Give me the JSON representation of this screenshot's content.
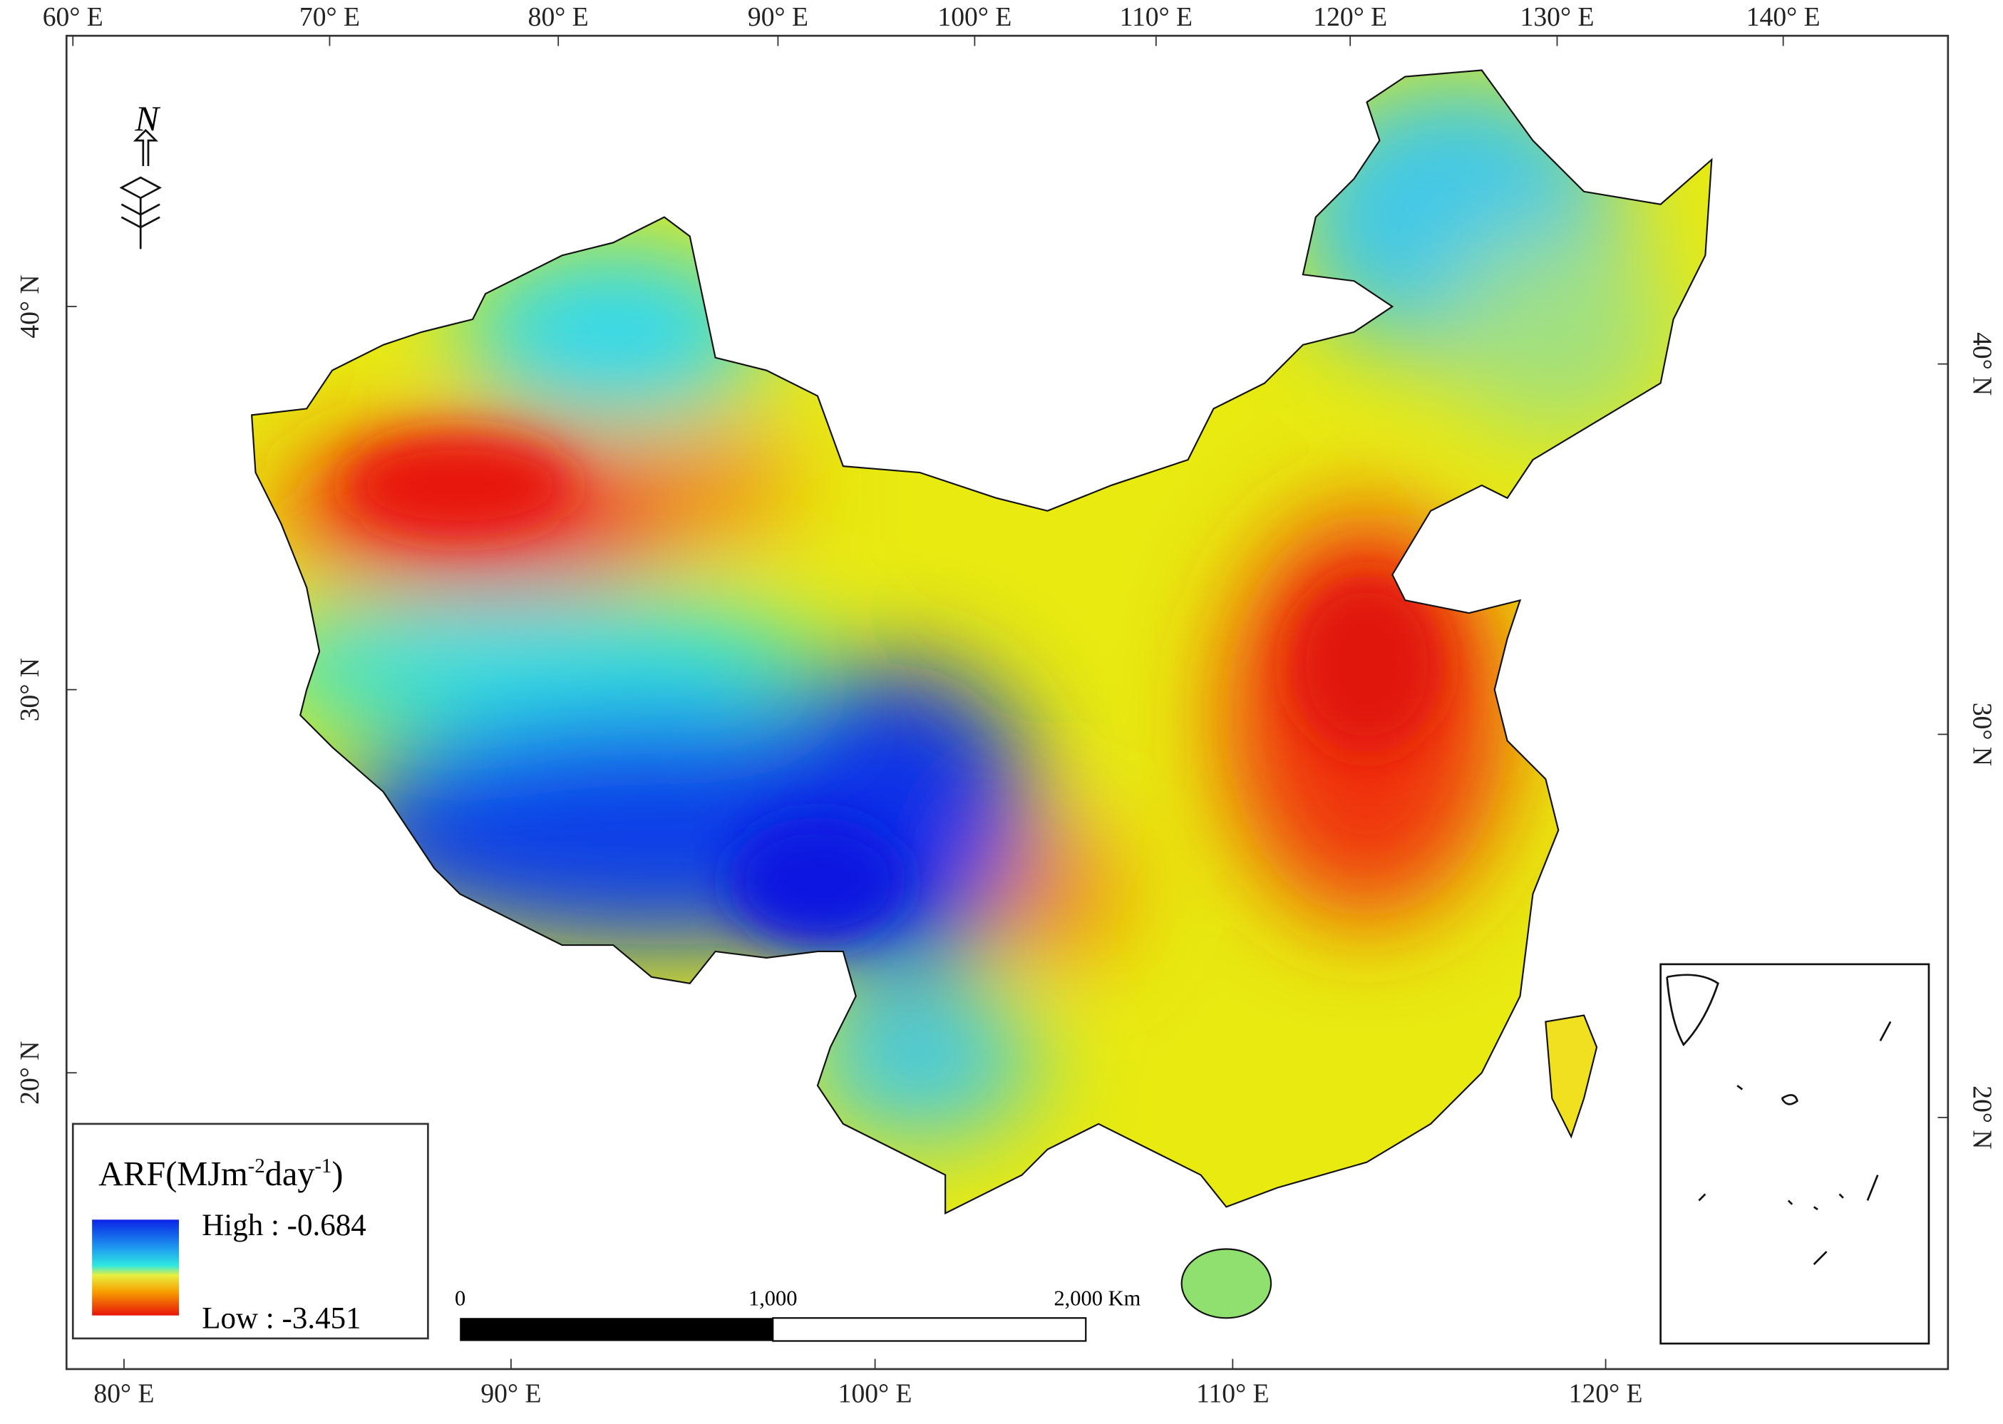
{
  "top_axis": {
    "labels": [
      "60° E",
      "70° E",
      "80° E",
      "90° E",
      "100° E",
      "110° E",
      "120° E",
      "130° E",
      "140° E"
    ]
  },
  "bottom_axis": {
    "labels": [
      "80° E",
      "90° E",
      "100° E",
      "110° E",
      "120° E"
    ]
  },
  "left_axis": {
    "labels": [
      "40° N",
      "30° N",
      "20° N"
    ]
  },
  "right_axis": {
    "labels": [
      "40° N",
      "30° N",
      "20° N"
    ]
  },
  "north_arrow": {
    "label": "N"
  },
  "legend": {
    "title_parts": [
      "ARF(MJm",
      "-2",
      "day",
      "-1",
      ")"
    ],
    "high": "High : -0.684",
    "low": "Low : -3.451"
  },
  "scale_bar": {
    "labels": [
      "0",
      "1,000",
      "2,000 Km"
    ]
  }
}
